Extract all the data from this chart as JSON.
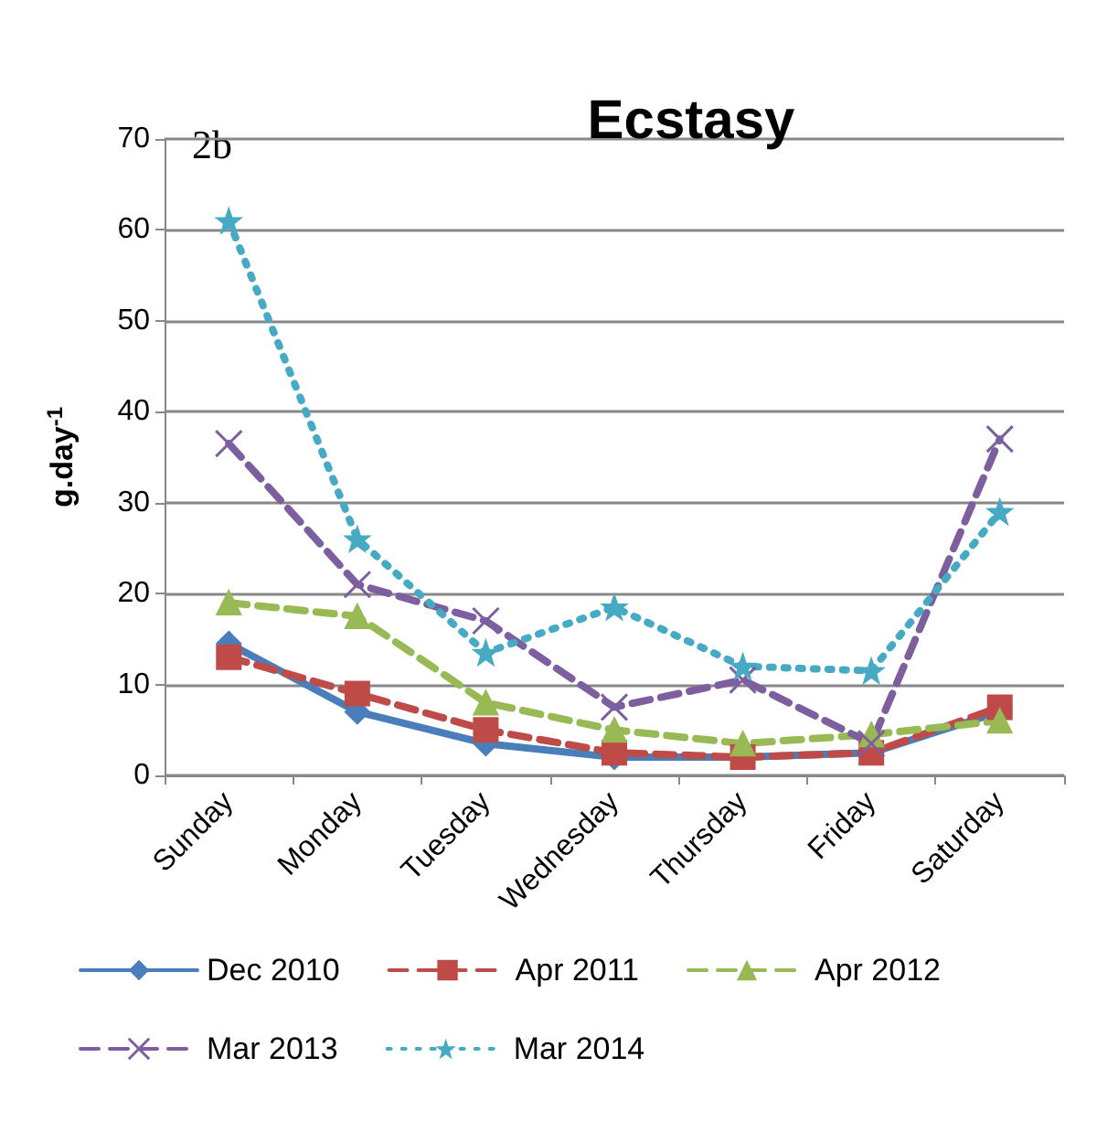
{
  "chart_data": {
    "type": "line",
    "title": "Ecstasy",
    "ylabel": "g.day$^{-1}$",
    "annotations": [
      "2b"
    ],
    "categories": [
      "Sunday",
      "Monday",
      "Tuesday",
      "Wednesday",
      "Thursday",
      "Friday",
      "Saturday"
    ],
    "series": [
      {
        "name": "Dec 2010",
        "color": "#4a7ebb",
        "marker": "diamond",
        "line_style": "solid",
        "values": [
          14.5,
          7,
          3.5,
          2,
          2,
          2.5,
          7
        ]
      },
      {
        "name": "Apr 2011",
        "color": "#be4b48",
        "marker": "square",
        "line_style": "dashed",
        "values": [
          13,
          9,
          5,
          2.5,
          2,
          2.5,
          7.5
        ]
      },
      {
        "name": "Apr 2012",
        "color": "#98b954",
        "marker": "triangle",
        "line_style": "dashed",
        "values": [
          19,
          17.5,
          8,
          5,
          3.5,
          4.5,
          6
        ]
      },
      {
        "name": "Mar 2013",
        "color": "#7d5fa0",
        "marker": "cross",
        "line_style": "dashed",
        "values": [
          36.5,
          21,
          17,
          7.5,
          10.5,
          3.5,
          37
        ]
      },
      {
        "name": "Mar 2014",
        "color": "#46aac5",
        "marker": "star",
        "line_style": "dotted",
        "values": [
          61,
          26,
          13.5,
          18.5,
          12,
          11.5,
          29
        ]
      }
    ],
    "ylim": [
      0,
      70
    ],
    "yticks": [
      0,
      10,
      20,
      30,
      40,
      50,
      60,
      70
    ],
    "grid": "y",
    "legend": "bottom"
  }
}
